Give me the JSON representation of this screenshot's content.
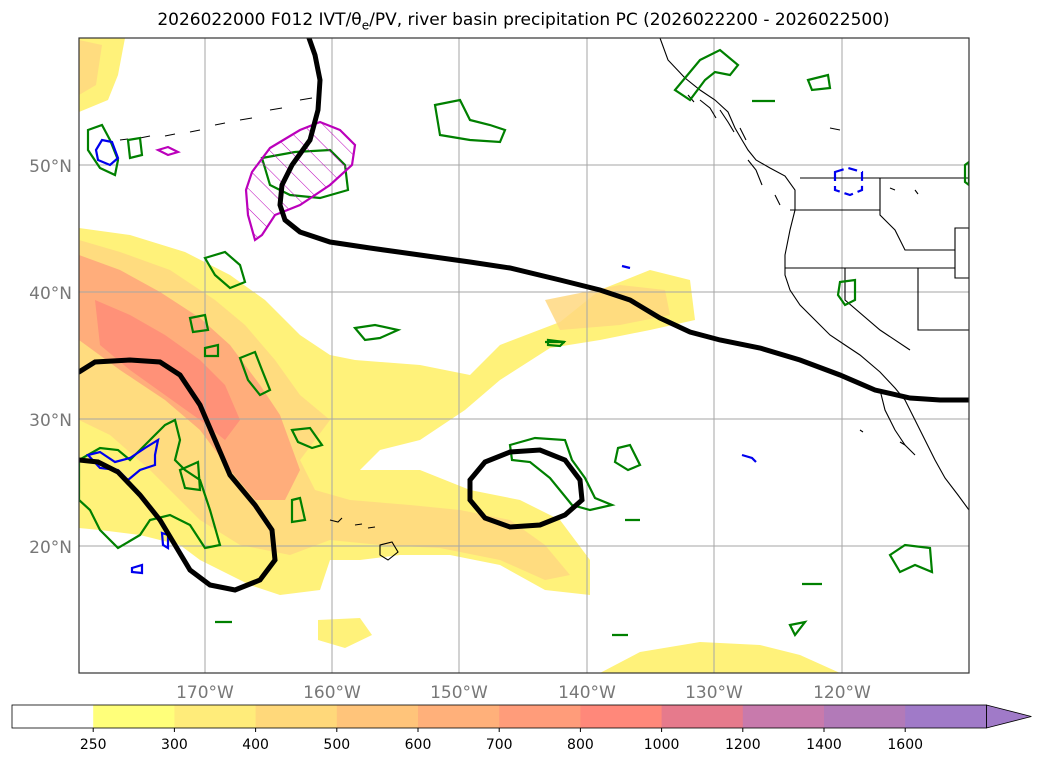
{
  "title": "2026022000 F012 IVT/θ",
  "title_sub": "e",
  "title_rest": "/PV, river basin precipitation PC (2026022200 - 2026022500)",
  "lat_labels": [
    "50°N",
    "40°N",
    "30°N",
    "20°N"
  ],
  "lon_labels": [
    "170°W",
    "160°W",
    "150°W",
    "140°W",
    "130°W",
    "120°W"
  ],
  "colorbar": {
    "ticks": [
      "250",
      "300",
      "400",
      "500",
      "600",
      "700",
      "800",
      "1000",
      "1200",
      "1400",
      "1600"
    ],
    "colors": [
      "#ffffff",
      "#ffff7a",
      "#ffec7a",
      "#ffd87a",
      "#ffc47a",
      "#ffb07a",
      "#ff9c7a",
      "#ff887a",
      "#e67a8c",
      "#c87aac",
      "#b27ab8",
      "#a07ac8"
    ]
  },
  "colors": {
    "ivt_low": "#fff27a",
    "ivt_mid": "#ffd880",
    "ivt_high": "#ff9e7a",
    "ivt_peak": "#ff8a78",
    "theta_contour": "#008000",
    "pv_contour": "#000000",
    "basin_positive": "#bb00bb",
    "basin_negative": "#0000ee"
  }
}
